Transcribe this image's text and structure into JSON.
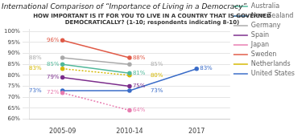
{
  "chart_data": {
    "type": "line",
    "title": "International Comparison of “Importance of Living in a Democracy”",
    "subtitle": "HOW IMPORTANT IS IT FOR YOU TO LIVE IN A COUNTRY THAT IS GOVERNED\nDEMOCRATICALLY? (1-10; respondents indicating 8-10)",
    "categories": [
      "2005-09",
      "2010-14",
      "2017"
    ],
    "series": [
      {
        "name": "Australia",
        "color": "#50b89a",
        "line_style": "solid",
        "values": [
          85,
          81,
          null
        ],
        "value_labels": [
          "85%",
          "81%",
          null
        ]
      },
      {
        "name": "New Zealand",
        "color": "#2a6496",
        "line_style": "dotted",
        "values": [
          null,
          null,
          null
        ]
      },
      {
        "name": "Germany",
        "color": "#aaaaaa",
        "line_style": "solid",
        "values": [
          88,
          85,
          null
        ],
        "value_labels": [
          "88%",
          "85%",
          null
        ]
      },
      {
        "name": "Spain",
        "color": "#7b2d8b",
        "line_style": "solid",
        "values": [
          79,
          75,
          null
        ],
        "value_labels": [
          "79%",
          "75%",
          null
        ]
      },
      {
        "name": "Japan",
        "color": "#e87db0",
        "line_style": "dotted",
        "values": [
          72,
          64,
          null
        ],
        "value_labels": [
          "72%",
          "64%",
          null
        ]
      },
      {
        "name": "Sweden",
        "color": "#e05a47",
        "line_style": "solid",
        "values": [
          96,
          88,
          null
        ],
        "value_labels": [
          "96%",
          "88%",
          null
        ]
      },
      {
        "name": "Netherlands",
        "color": "#d4b800",
        "line_style": "dotted",
        "values": [
          83,
          80,
          null
        ],
        "value_labels": [
          "83%",
          "80%",
          null
        ]
      },
      {
        "name": "United States",
        "color": "#3a6cc8",
        "line_style": "solid",
        "values": [
          73,
          73,
          83
        ],
        "value_labels": [
          "73%",
          "73%",
          "83%"
        ]
      }
    ],
    "ylim": [
      60,
      101
    ],
    "yticks": [
      {
        "value": 60,
        "label": "60%"
      },
      {
        "value": 65,
        "label": "65%"
      },
      {
        "value": 70,
        "label": "70%"
      },
      {
        "value": 75,
        "label": "75%"
      },
      {
        "value": 80,
        "label": "80%"
      },
      {
        "value": 85,
        "label": "85%"
      },
      {
        "value": 90,
        "label": "90%"
      },
      {
        "value": 95,
        "label": "95%"
      },
      {
        "value": 100,
        "label": "100%"
      }
    ],
    "grid": "y",
    "legend": "right",
    "data_labels": true,
    "marker": "circle"
  }
}
